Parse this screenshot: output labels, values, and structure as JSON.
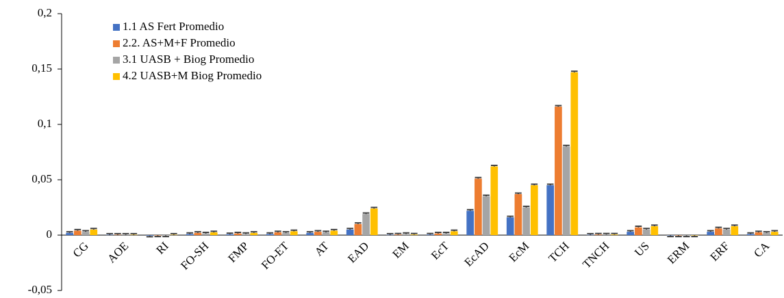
{
  "chart_data": {
    "type": "bar",
    "categories": [
      "CG",
      "AOE",
      "RI",
      "FO-SH",
      "FMP",
      "FO-ET",
      "AT",
      "EAD",
      "EM",
      "EcT",
      "EcAD",
      "EcM",
      "TCH",
      "TNCH",
      "US",
      "ERM",
      "ERF",
      "CA"
    ],
    "series": [
      {
        "name": "1.1 AS Fert Promedio",
        "color": "#4472c4",
        "values": [
          0.002,
          0.0003,
          -0.0005,
          0.001,
          0.0008,
          0.001,
          0.002,
          0.005,
          0.0003,
          0.0005,
          0.022,
          0.016,
          0.045,
          0.0003,
          0.003,
          -0.0003,
          0.003,
          0.001
        ],
        "errors": [
          0.001,
          0.001,
          0.001,
          0.001,
          0.001,
          0.001,
          0.001,
          0.001,
          0.001,
          0.001,
          0.001,
          0.001,
          0.001,
          0.001,
          0.001,
          0.001,
          0.001,
          0.001
        ]
      },
      {
        "name": "2.2. AS+M+F Promedio",
        "color": "#ed7d31",
        "values": [
          0.004,
          0.0003,
          -0.0003,
          0.002,
          0.0015,
          0.0025,
          0.003,
          0.01,
          0.0005,
          0.0015,
          0.051,
          0.037,
          0.116,
          0.0005,
          0.007,
          -0.0003,
          0.006,
          0.0025
        ],
        "errors": [
          0.001,
          0.001,
          0.001,
          0.001,
          0.001,
          0.001,
          0.001,
          0.001,
          0.001,
          0.001,
          0.001,
          0.001,
          0.001,
          0.001,
          0.001,
          0.001,
          0.001,
          0.001
        ]
      },
      {
        "name": "3.1 UASB + Biog Promedio",
        "color": "#a5a5a5",
        "values": [
          0.003,
          0.0003,
          -0.0003,
          0.0015,
          0.001,
          0.002,
          0.0025,
          0.019,
          0.001,
          0.0015,
          0.035,
          0.025,
          0.08,
          0.0005,
          0.005,
          -0.0003,
          0.005,
          0.002
        ],
        "errors": [
          0.001,
          0.001,
          0.001,
          0.001,
          0.001,
          0.001,
          0.001,
          0.001,
          0.001,
          0.001,
          0.001,
          0.001,
          0.001,
          0.001,
          0.001,
          0.001,
          0.001,
          0.001
        ]
      },
      {
        "name": "4.2 UASB+M Biog Promedio",
        "color": "#ffc000",
        "values": [
          0.005,
          0.0003,
          0.0003,
          0.0025,
          0.002,
          0.0035,
          0.004,
          0.024,
          0.0005,
          0.0035,
          0.062,
          0.045,
          0.147,
          0.0005,
          0.008,
          -0.0003,
          0.008,
          0.003
        ],
        "errors": [
          0.001,
          0.001,
          0.001,
          0.001,
          0.001,
          0.001,
          0.001,
          0.001,
          0.001,
          0.001,
          0.001,
          0.001,
          0.001,
          0.001,
          0.001,
          0.001,
          0.001,
          0.001
        ]
      }
    ],
    "ylim": [
      -0.05,
      0.2
    ],
    "yticks": [
      {
        "value": -0.05,
        "label": "-0,05"
      },
      0,
      {
        "value": 0.05,
        "label": "0,05"
      },
      {
        "value": 0.1,
        "label": "0,1"
      },
      {
        "value": 0.15,
        "label": "0,15"
      },
      {
        "value": 0.2,
        "label": "0,2"
      }
    ],
    "grid": false,
    "legend": "upper left"
  }
}
